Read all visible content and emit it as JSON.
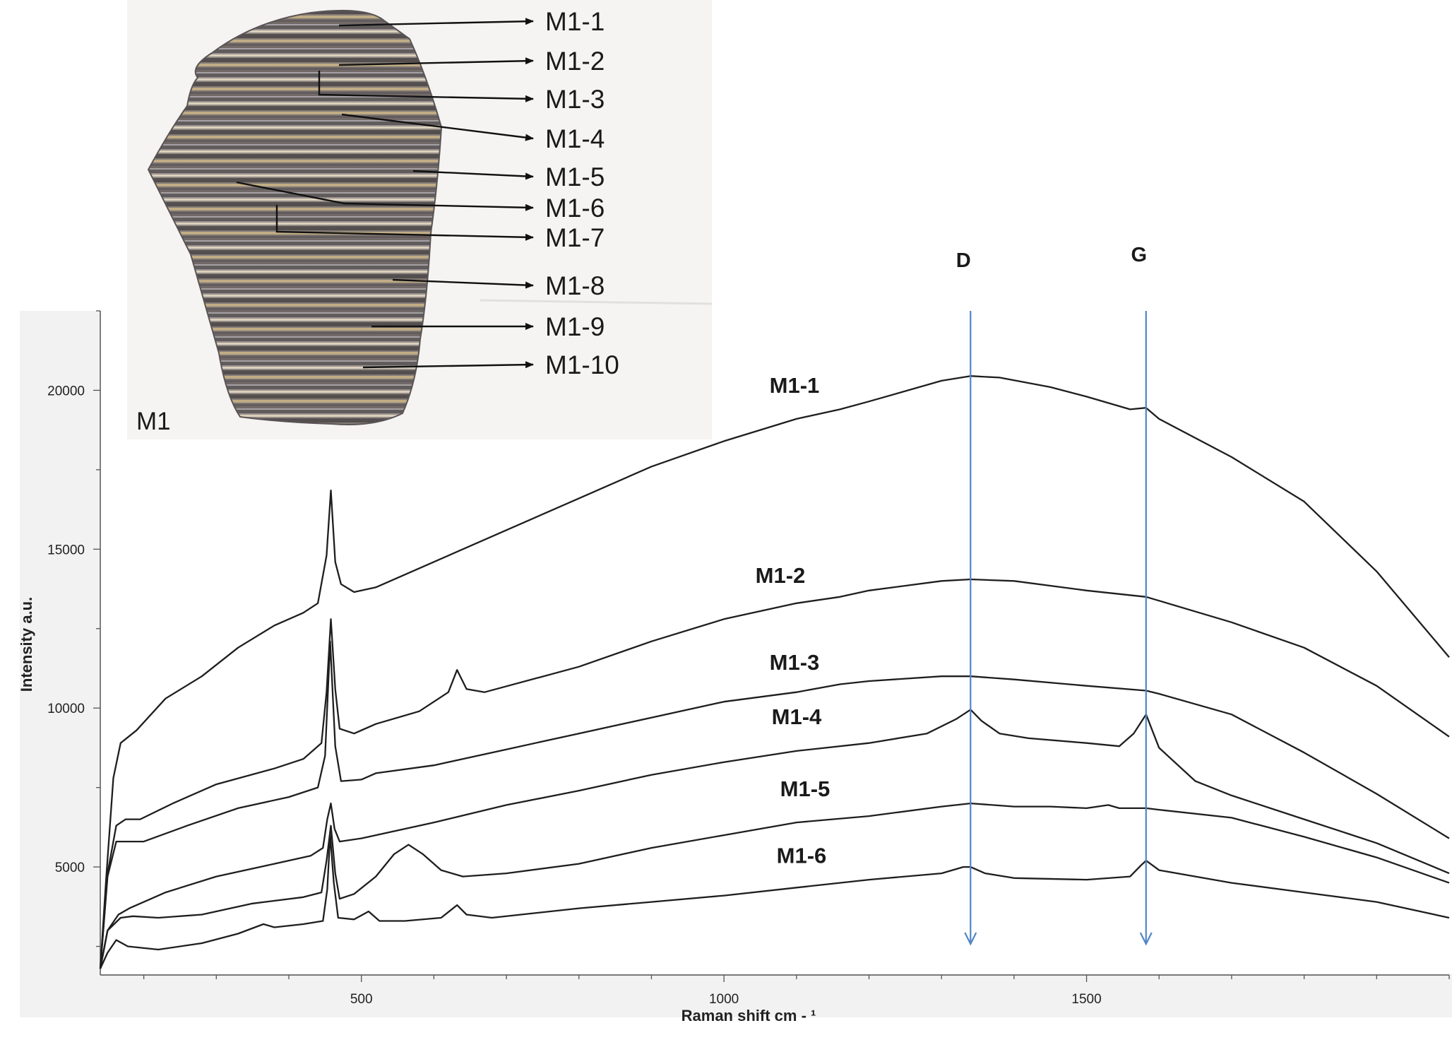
{
  "chart_data": {
    "type": "line",
    "xlabel": "Raman shift cm - ¹",
    "ylabel": "Intensity a.u.",
    "xlim": [
      140,
      2000
    ],
    "ylim": [
      1600,
      22500
    ],
    "x_ticks": [
      500,
      1000,
      1500
    ],
    "y_ticks": [
      5000,
      10000,
      15000,
      20000
    ],
    "grid": false,
    "band_markers": [
      {
        "label": "D",
        "x": 1340
      },
      {
        "label": "G",
        "x": 1582
      }
    ],
    "series": [
      {
        "name": "M1-1",
        "points": [
          [
            140,
            1800
          ],
          [
            148,
            4600
          ],
          [
            158,
            7800
          ],
          [
            168,
            8900
          ],
          [
            190,
            9300
          ],
          [
            230,
            10300
          ],
          [
            280,
            11000
          ],
          [
            330,
            11900
          ],
          [
            380,
            12600
          ],
          [
            420,
            13000
          ],
          [
            440,
            13300
          ],
          [
            452,
            14800
          ],
          [
            458,
            16850
          ],
          [
            464,
            14600
          ],
          [
            472,
            13900
          ],
          [
            490,
            13650
          ],
          [
            520,
            13800
          ],
          [
            600,
            14600
          ],
          [
            700,
            15600
          ],
          [
            800,
            16600
          ],
          [
            900,
            17600
          ],
          [
            1000,
            18400
          ],
          [
            1100,
            19100
          ],
          [
            1160,
            19400
          ],
          [
            1200,
            19650
          ],
          [
            1300,
            20300
          ],
          [
            1340,
            20450
          ],
          [
            1380,
            20400
          ],
          [
            1450,
            20100
          ],
          [
            1500,
            19800
          ],
          [
            1560,
            19400
          ],
          [
            1582,
            19450
          ],
          [
            1600,
            19100
          ],
          [
            1700,
            17900
          ],
          [
            1800,
            16500
          ],
          [
            1900,
            14300
          ],
          [
            2000,
            11600
          ]
        ]
      },
      {
        "name": "M1-2",
        "points": [
          [
            140,
            1800
          ],
          [
            150,
            4800
          ],
          [
            162,
            6300
          ],
          [
            175,
            6500
          ],
          [
            195,
            6500
          ],
          [
            240,
            7000
          ],
          [
            300,
            7600
          ],
          [
            380,
            8100
          ],
          [
            420,
            8400
          ],
          [
            445,
            8900
          ],
          [
            452,
            10500
          ],
          [
            458,
            12800
          ],
          [
            464,
            10600
          ],
          [
            470,
            9350
          ],
          [
            490,
            9200
          ],
          [
            520,
            9500
          ],
          [
            580,
            9900
          ],
          [
            620,
            10500
          ],
          [
            632,
            11200
          ],
          [
            645,
            10600
          ],
          [
            670,
            10500
          ],
          [
            800,
            11300
          ],
          [
            900,
            12100
          ],
          [
            1000,
            12800
          ],
          [
            1100,
            13300
          ],
          [
            1160,
            13500
          ],
          [
            1200,
            13700
          ],
          [
            1300,
            14000
          ],
          [
            1340,
            14050
          ],
          [
            1400,
            14000
          ],
          [
            1500,
            13700
          ],
          [
            1582,
            13500
          ],
          [
            1700,
            12700
          ],
          [
            1800,
            11900
          ],
          [
            1900,
            10700
          ],
          [
            2000,
            9100
          ]
        ]
      },
      {
        "name": "M1-3",
        "points": [
          [
            140,
            1800
          ],
          [
            150,
            4700
          ],
          [
            162,
            5800
          ],
          [
            175,
            5800
          ],
          [
            200,
            5800
          ],
          [
            260,
            6300
          ],
          [
            330,
            6850
          ],
          [
            400,
            7200
          ],
          [
            440,
            7500
          ],
          [
            450,
            8500
          ],
          [
            457,
            12100
          ],
          [
            464,
            8800
          ],
          [
            472,
            7700
          ],
          [
            500,
            7750
          ],
          [
            520,
            7950
          ],
          [
            600,
            8200
          ],
          [
            700,
            8700
          ],
          [
            800,
            9200
          ],
          [
            900,
            9700
          ],
          [
            1000,
            10200
          ],
          [
            1100,
            10500
          ],
          [
            1160,
            10750
          ],
          [
            1200,
            10850
          ],
          [
            1300,
            11000
          ],
          [
            1340,
            11000
          ],
          [
            1400,
            10900
          ],
          [
            1500,
            10700
          ],
          [
            1582,
            10550
          ],
          [
            1600,
            10450
          ],
          [
            1700,
            9800
          ],
          [
            1800,
            8600
          ],
          [
            1900,
            7300
          ],
          [
            2000,
            5900
          ]
        ]
      },
      {
        "name": "M1-4",
        "points": [
          [
            140,
            1800
          ],
          [
            150,
            3000
          ],
          [
            165,
            3500
          ],
          [
            180,
            3700
          ],
          [
            230,
            4200
          ],
          [
            300,
            4700
          ],
          [
            380,
            5100
          ],
          [
            430,
            5350
          ],
          [
            447,
            5600
          ],
          [
            453,
            6500
          ],
          [
            458,
            7000
          ],
          [
            463,
            6200
          ],
          [
            470,
            5800
          ],
          [
            500,
            5900
          ],
          [
            600,
            6400
          ],
          [
            700,
            6950
          ],
          [
            800,
            7400
          ],
          [
            900,
            7900
          ],
          [
            1000,
            8300
          ],
          [
            1100,
            8650
          ],
          [
            1200,
            8900
          ],
          [
            1280,
            9200
          ],
          [
            1320,
            9650
          ],
          [
            1340,
            9950
          ],
          [
            1355,
            9600
          ],
          [
            1380,
            9200
          ],
          [
            1420,
            9050
          ],
          [
            1500,
            8900
          ],
          [
            1545,
            8800
          ],
          [
            1565,
            9200
          ],
          [
            1582,
            9800
          ],
          [
            1600,
            8750
          ],
          [
            1650,
            7700
          ],
          [
            1700,
            7250
          ],
          [
            1800,
            6500
          ],
          [
            1900,
            5750
          ],
          [
            2000,
            4800
          ]
        ]
      },
      {
        "name": "M1-5",
        "points": [
          [
            140,
            1800
          ],
          [
            150,
            3000
          ],
          [
            168,
            3400
          ],
          [
            185,
            3450
          ],
          [
            220,
            3400
          ],
          [
            280,
            3500
          ],
          [
            350,
            3850
          ],
          [
            420,
            4050
          ],
          [
            445,
            4200
          ],
          [
            452,
            5200
          ],
          [
            458,
            6300
          ],
          [
            464,
            4800
          ],
          [
            470,
            4000
          ],
          [
            490,
            4150
          ],
          [
            520,
            4700
          ],
          [
            545,
            5400
          ],
          [
            565,
            5700
          ],
          [
            585,
            5400
          ],
          [
            610,
            4900
          ],
          [
            640,
            4700
          ],
          [
            700,
            4800
          ],
          [
            800,
            5100
          ],
          [
            900,
            5600
          ],
          [
            1000,
            6000
          ],
          [
            1100,
            6400
          ],
          [
            1200,
            6600
          ],
          [
            1300,
            6900
          ],
          [
            1340,
            7000
          ],
          [
            1400,
            6900
          ],
          [
            1450,
            6900
          ],
          [
            1500,
            6850
          ],
          [
            1530,
            6950
          ],
          [
            1545,
            6850
          ],
          [
            1582,
            6850
          ],
          [
            1600,
            6800
          ],
          [
            1700,
            6550
          ],
          [
            1800,
            5950
          ],
          [
            1900,
            5300
          ],
          [
            2000,
            4500
          ]
        ]
      },
      {
        "name": "M1-6",
        "points": [
          [
            140,
            1800
          ],
          [
            150,
            2300
          ],
          [
            162,
            2700
          ],
          [
            178,
            2500
          ],
          [
            220,
            2400
          ],
          [
            280,
            2600
          ],
          [
            330,
            2900
          ],
          [
            365,
            3200
          ],
          [
            380,
            3100
          ],
          [
            420,
            3200
          ],
          [
            447,
            3300
          ],
          [
            453,
            4300
          ],
          [
            457,
            6000
          ],
          [
            462,
            4500
          ],
          [
            468,
            3400
          ],
          [
            490,
            3350
          ],
          [
            510,
            3600
          ],
          [
            525,
            3300
          ],
          [
            560,
            3300
          ],
          [
            610,
            3400
          ],
          [
            632,
            3800
          ],
          [
            645,
            3500
          ],
          [
            680,
            3400
          ],
          [
            800,
            3700
          ],
          [
            900,
            3900
          ],
          [
            1000,
            4100
          ],
          [
            1100,
            4350
          ],
          [
            1200,
            4600
          ],
          [
            1300,
            4800
          ],
          [
            1330,
            5000
          ],
          [
            1340,
            5000
          ],
          [
            1360,
            4800
          ],
          [
            1400,
            4650
          ],
          [
            1500,
            4600
          ],
          [
            1560,
            4700
          ],
          [
            1575,
            5050
          ],
          [
            1582,
            5200
          ],
          [
            1600,
            4900
          ],
          [
            1650,
            4700
          ],
          [
            1700,
            4500
          ],
          [
            1800,
            4200
          ],
          [
            1900,
            3900
          ],
          [
            2000,
            3400
          ]
        ]
      }
    ],
    "series_label_positions": "above each curve near x=1000"
  },
  "inset": {
    "title": "M1",
    "sample_labels": [
      "M1-1",
      "M1-2",
      "M1-3",
      "M1-4",
      "M1-5",
      "M1-6",
      "M1-7",
      "M1-8",
      "M1-9",
      "M1-10"
    ]
  },
  "colors": {
    "spectrum": "#1e1e1e",
    "guide_lines": "#4f86c6",
    "plot_background": "#ffffff",
    "frame_background": "#f2f2f2"
  }
}
